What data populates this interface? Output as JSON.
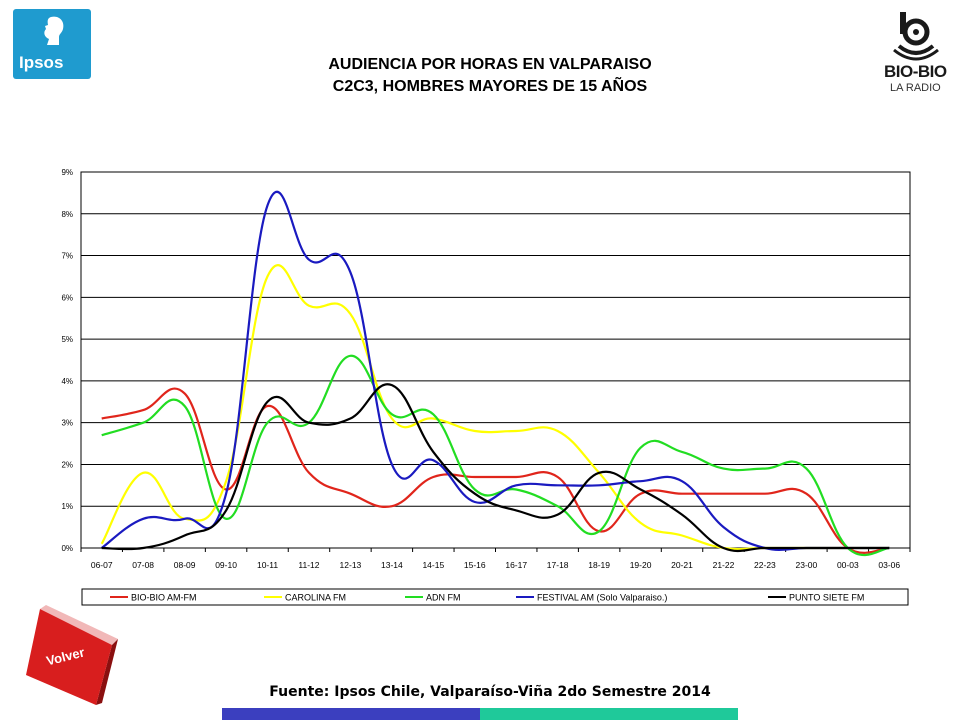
{
  "header": {
    "title_line1": "AUDIENCIA POR HORAS EN VALPARAISO",
    "title_line2": "C2C3, HOMBRES MAYORES DE 15 AÑOS"
  },
  "logos": {
    "ipsos": "Ipsos",
    "biobio_brand": "BIO-BIO",
    "biobio_sub": "LA RADIO"
  },
  "footer": {
    "source": "Fuente: Ipsos Chile, Valparaíso-Viña 2do Semestre 2014",
    "volver": "Volver"
  },
  "colors": {
    "ipsos_blue": "#1f9bcf",
    "volver_red": "#d81e1e",
    "footer_blue": "#3b3fbf",
    "footer_green": "#1fc99a"
  },
  "chart_data": {
    "type": "line",
    "categories": [
      "06-07",
      "07-08",
      "08-09",
      "09-10",
      "10-11",
      "11-12",
      "12-13",
      "13-14",
      "14-15",
      "15-16",
      "16-17",
      "17-18",
      "18-19",
      "19-20",
      "20-21",
      "21-22",
      "22-23",
      "23-00",
      "00-03",
      "03-06"
    ],
    "yticks": [
      "0%",
      "1%",
      "2%",
      "3%",
      "4%",
      "5%",
      "6%",
      "7%",
      "8%",
      "9%"
    ],
    "ylim": [
      0,
      9
    ],
    "grid": true,
    "legend_position": "bottom",
    "series": [
      {
        "name": "BIO-BIO AM-FM",
        "color": "#e0251b",
        "values": [
          3.1,
          3.3,
          3.7,
          1.4,
          3.4,
          1.8,
          1.3,
          1.0,
          1.7,
          1.7,
          1.7,
          1.7,
          0.4,
          1.3,
          1.3,
          1.3,
          1.3,
          1.3,
          0.0,
          0.0
        ]
      },
      {
        "name": "CAROLINA FM",
        "color": "#ffff00",
        "values": [
          0.1,
          1.8,
          0.7,
          1.6,
          6.5,
          5.8,
          5.6,
          3.1,
          3.1,
          2.8,
          2.8,
          2.8,
          1.8,
          0.6,
          0.3,
          0.0,
          0.0,
          0.0,
          0.0,
          0.0
        ]
      },
      {
        "name": "ADN FM",
        "color": "#22dd22",
        "values": [
          2.7,
          3.0,
          3.4,
          0.7,
          3.0,
          3.0,
          4.6,
          3.2,
          3.2,
          1.4,
          1.4,
          1.0,
          0.4,
          2.4,
          2.3,
          1.9,
          1.9,
          1.9,
          0.0,
          0.0
        ]
      },
      {
        "name": "FESTIVAL AM (Solo Valparaiso.)",
        "color": "#1a1ac0",
        "values": [
          0.0,
          0.7,
          0.7,
          1.3,
          8.2,
          6.9,
          6.6,
          2.0,
          2.1,
          1.1,
          1.5,
          1.5,
          1.5,
          1.6,
          1.6,
          0.5,
          0.0,
          0.0,
          0.0,
          0.0
        ]
      },
      {
        "name": "PUNTO SIETE FM",
        "color": "#000000",
        "values": [
          0.0,
          0.0,
          0.3,
          0.9,
          3.5,
          3.0,
          3.1,
          3.9,
          2.3,
          1.3,
          0.9,
          0.8,
          1.8,
          1.4,
          0.8,
          0.0,
          0.0,
          0.0,
          0.0,
          0.0
        ]
      }
    ]
  }
}
